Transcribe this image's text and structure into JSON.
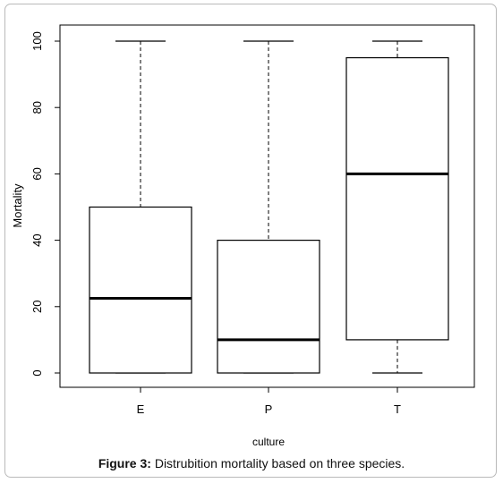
{
  "chart_data": {
    "type": "boxplot",
    "xlabel": "culture",
    "ylabel": "Mortality",
    "ylim": [
      0,
      100
    ],
    "yticks": [
      "0",
      "20",
      "40",
      "60",
      "80",
      "100"
    ],
    "categories": [
      "E",
      "P",
      "T"
    ],
    "boxes": [
      {
        "name": "E",
        "whisker_low": 0,
        "q1": 0,
        "median": 22.5,
        "q3": 50,
        "whisker_high": 100
      },
      {
        "name": "P",
        "whisker_low": 0,
        "q1": 0,
        "median": 10,
        "q3": 40,
        "whisker_high": 100
      },
      {
        "name": "T",
        "whisker_low": 0,
        "q1": 10,
        "median": 60,
        "q3": 95,
        "whisker_high": 100
      }
    ],
    "colors": {
      "box": "#000000",
      "median": "#000000",
      "axis": "#000000"
    }
  },
  "caption": {
    "label": "Figure 3:",
    "text": " Distrubition mortality based on three species."
  }
}
